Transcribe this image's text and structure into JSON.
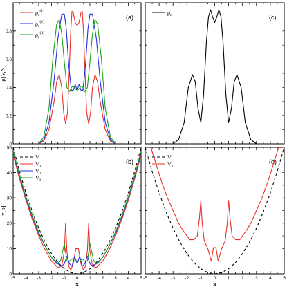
{
  "chart_data": [
    {
      "panel": "(a)",
      "type": "line",
      "ylabel": "ρ[V,N]",
      "xlim": [
        -5,
        5
      ],
      "ylim": [
        0,
        1
      ],
      "yticks": [
        "0",
        "0.2",
        "0.4",
        "0.6",
        "0.8"
      ],
      "legend_position": "top-left",
      "series": [
        {
          "name": "ρ_e^(1)",
          "label_main": "ρ",
          "label_sub": "e",
          "label_sup": "(1)",
          "color": "#e8302a",
          "x": [
            -3.0,
            -2.6,
            -2.2,
            -1.8,
            -1.6,
            -1.4,
            -1.2,
            -1.05,
            -0.9,
            -0.75,
            -0.6,
            -0.5,
            -0.4,
            -0.3,
            -0.15,
            0.0,
            0.15,
            0.3,
            0.4,
            0.5,
            0.6,
            0.75,
            0.9,
            1.05,
            1.2,
            1.4,
            1.6,
            1.8,
            2.2,
            2.6,
            3.0
          ],
          "y": [
            0.0,
            0.02,
            0.1,
            0.3,
            0.44,
            0.49,
            0.4,
            0.22,
            0.14,
            0.22,
            0.55,
            0.8,
            0.94,
            0.93,
            0.86,
            0.84,
            0.86,
            0.93,
            0.94,
            0.8,
            0.55,
            0.22,
            0.14,
            0.22,
            0.4,
            0.49,
            0.44,
            0.3,
            0.1,
            0.02,
            0.0
          ]
        },
        {
          "name": "ρ_e^(2)",
          "label_main": "ρ",
          "label_sub": "e",
          "label_sup": "(2)",
          "color": "#1f2fe0",
          "x": [
            -3.0,
            -2.6,
            -2.2,
            -1.8,
            -1.5,
            -1.2,
            -1.0,
            -0.85,
            -0.65,
            -0.45,
            -0.3,
            -0.15,
            0.0,
            0.15,
            0.3,
            0.45,
            0.65,
            0.85,
            1.0,
            1.2,
            1.5,
            1.8,
            2.2,
            2.6,
            3.0
          ],
          "y": [
            0.0,
            0.03,
            0.15,
            0.45,
            0.75,
            0.92,
            0.92,
            0.82,
            0.55,
            0.38,
            0.38,
            0.42,
            0.38,
            0.42,
            0.38,
            0.38,
            0.55,
            0.82,
            0.92,
            0.92,
            0.75,
            0.45,
            0.15,
            0.03,
            0.0
          ]
        },
        {
          "name": "ρ_e^(3)",
          "label_main": "ρ",
          "label_sub": "e",
          "label_sup": "(3)",
          "color": "#1aa01a",
          "x": [
            -3.0,
            -2.6,
            -2.2,
            -1.9,
            -1.6,
            -1.4,
            -1.2,
            -1.0,
            -0.8,
            -0.6,
            -0.45,
            -0.3,
            -0.15,
            0.0,
            0.15,
            0.3,
            0.45,
            0.6,
            0.8,
            1.0,
            1.2,
            1.4,
            1.6,
            1.9,
            2.2,
            2.6,
            3.0
          ],
          "y": [
            0.0,
            0.05,
            0.25,
            0.6,
            0.85,
            0.88,
            0.78,
            0.58,
            0.4,
            0.37,
            0.4,
            0.41,
            0.39,
            0.38,
            0.39,
            0.41,
            0.4,
            0.37,
            0.4,
            0.58,
            0.78,
            0.88,
            0.85,
            0.6,
            0.25,
            0.05,
            0.0
          ]
        }
      ]
    },
    {
      "panel": "(b)",
      "type": "line",
      "xlabel": "x",
      "ylabel": "v[ρ]",
      "xlim": [
        -5,
        5
      ],
      "ylim": [
        0,
        50
      ],
      "xticks": [
        "-5",
        "-4",
        "-3",
        "-2",
        "-1",
        "0",
        "1",
        "2",
        "3",
        "4",
        "5"
      ],
      "yticks": [
        "0",
        "10",
        "20",
        "30",
        "40",
        "50"
      ],
      "legend_position": "top-left",
      "series": [
        {
          "name": "V",
          "label_main": "V",
          "label_sub": "",
          "color": "#000000",
          "dashed": true,
          "x": [
            -5,
            -4.5,
            -4,
            -3.5,
            -3,
            -2.5,
            -2,
            -1.5,
            -1,
            -0.5,
            0,
            0.5,
            1,
            1.5,
            2,
            2.5,
            3,
            3.5,
            4,
            4.5,
            5
          ],
          "y": [
            50,
            40.5,
            32,
            24.5,
            18,
            12.5,
            8,
            4.5,
            2,
            0.5,
            0,
            0.5,
            2,
            4.5,
            8,
            12.5,
            18,
            24.5,
            32,
            40.5,
            50
          ]
        },
        {
          "name": "V_1",
          "label_main": "V",
          "label_sub": "1",
          "color": "#e8302a",
          "x": [
            -5,
            -4.5,
            -4,
            -3.5,
            -3,
            -2.5,
            -2,
            -1.5,
            -1.2,
            -1.0,
            -0.9,
            -0.8,
            -0.65,
            -0.5,
            -0.3,
            -0.1,
            0.0,
            0.1,
            0.3,
            0.5,
            0.65,
            0.8,
            0.9,
            1.0,
            1.2,
            1.5,
            2,
            2.5,
            3,
            3.5,
            4,
            4.5,
            5
          ],
          "y": [
            47,
            37.5,
            29,
            21.5,
            15,
            9.5,
            5,
            2.5,
            3,
            9,
            20,
            9,
            3,
            1.5,
            4,
            10,
            10,
            10,
            4,
            1.5,
            3,
            9,
            20,
            9,
            3,
            2.5,
            5,
            9.5,
            15,
            21.5,
            29,
            37.5,
            47
          ]
        },
        {
          "name": "V_2",
          "label_main": "V",
          "label_sub": "2",
          "color": "#1f2fe0",
          "x": [
            -5,
            -4.5,
            -4,
            -3.5,
            -3,
            -2.5,
            -2,
            -1.5,
            -1.2,
            -1.0,
            -0.8,
            -0.6,
            -0.4,
            -0.2,
            0.0,
            0.2,
            0.4,
            0.6,
            0.8,
            1.0,
            1.2,
            1.5,
            2,
            2.5,
            3,
            3.5,
            4,
            4.5,
            5
          ],
          "y": [
            48,
            38.5,
            30,
            22.5,
            16,
            11,
            6.5,
            4,
            3,
            4,
            7,
            4,
            3,
            7,
            4,
            7,
            3,
            4,
            7,
            4,
            3,
            4,
            6.5,
            11,
            16,
            22.5,
            30,
            38.5,
            48
          ]
        },
        {
          "name": "V_3",
          "label_main": "V",
          "label_sub": "3",
          "color": "#1aa01a",
          "x": [
            -5,
            -4.5,
            -4,
            -3.5,
            -3,
            -2.5,
            -2,
            -1.6,
            -1.3,
            -1.0,
            -0.8,
            -0.6,
            -0.4,
            -0.2,
            0.0,
            0.2,
            0.4,
            0.6,
            0.8,
            1.0,
            1.3,
            1.6,
            2,
            2.5,
            3,
            3.5,
            4,
            4.5,
            5
          ],
          "y": [
            48.5,
            39,
            30.5,
            23,
            16.5,
            11,
            6.5,
            4,
            5,
            12,
            5,
            5,
            6,
            5,
            5,
            5,
            6,
            5,
            5,
            12,
            5,
            4,
            6.5,
            11,
            16.5,
            23,
            30.5,
            39,
            48.5
          ]
        }
      ]
    },
    {
      "panel": "(c)",
      "type": "line",
      "xlim": [
        -5,
        5
      ],
      "ylim": [
        0,
        1
      ],
      "legend_position": "top-left",
      "series": [
        {
          "name": "ρ_e",
          "label_main": "ρ",
          "label_sub": "e",
          "label_sup": "",
          "color": "#000000",
          "x": [
            -3.0,
            -2.6,
            -2.2,
            -1.9,
            -1.6,
            -1.4,
            -1.2,
            -1.0,
            -0.8,
            -0.6,
            -0.45,
            -0.3,
            -0.15,
            0.0,
            0.15,
            0.3,
            0.45,
            0.6,
            0.8,
            1.0,
            1.2,
            1.4,
            1.6,
            1.9,
            2.2,
            2.6,
            3.0
          ],
          "y": [
            0.0,
            0.03,
            0.15,
            0.4,
            0.49,
            0.44,
            0.25,
            0.15,
            0.35,
            0.72,
            0.9,
            0.95,
            0.9,
            0.86,
            0.9,
            0.95,
            0.9,
            0.72,
            0.35,
            0.15,
            0.25,
            0.44,
            0.49,
            0.4,
            0.15,
            0.03,
            0.0
          ]
        }
      ]
    },
    {
      "panel": "(d)",
      "type": "line",
      "xlabel": "x",
      "xlim": [
        -5,
        5
      ],
      "ylim": [
        0,
        50
      ],
      "xticks": [
        "-5",
        "-4",
        "-3",
        "-2",
        "-1",
        "0",
        "1",
        "2",
        "3",
        "4",
        "5"
      ],
      "legend_position": "top-left",
      "series": [
        {
          "name": "V",
          "label_main": "V",
          "label_sub": "",
          "color": "#000000",
          "dashed": true,
          "x": [
            -5,
            -4.5,
            -4,
            -3.5,
            -3,
            -2.5,
            -2,
            -1.5,
            -1,
            -0.5,
            0,
            0.5,
            1,
            1.5,
            2,
            2.5,
            3,
            3.5,
            4,
            4.5,
            5
          ],
          "y": [
            50,
            40.5,
            32,
            24.5,
            18,
            12.5,
            8,
            4.5,
            2,
            0.5,
            0,
            0.5,
            2,
            4.5,
            8,
            12.5,
            18,
            24.5,
            32,
            40.5,
            50
          ]
        },
        {
          "name": "V_1",
          "label_main": "V",
          "label_sub": "1",
          "color": "#e8302a",
          "x": [
            -4.6,
            -4.2,
            -3.8,
            -3.4,
            -3,
            -2.6,
            -2.2,
            -1.8,
            -1.5,
            -1.25,
            -1.1,
            -1.0,
            -0.9,
            -0.75,
            -0.5,
            -0.25,
            -0.1,
            0.0,
            0.1,
            0.25,
            0.5,
            0.75,
            0.9,
            1.0,
            1.1,
            1.25,
            1.5,
            1.8,
            2.2,
            2.6,
            3,
            3.4,
            3.8,
            4.2,
            4.6
          ],
          "y": [
            50,
            43,
            36,
            30,
            25,
            20,
            16.5,
            13.5,
            13.5,
            15,
            22,
            29,
            20,
            13,
            10,
            5,
            10,
            10.5,
            10,
            5,
            10,
            13,
            20,
            29,
            22,
            15,
            13.5,
            13.5,
            16.5,
            20,
            25,
            30,
            36,
            43,
            50
          ]
        }
      ]
    }
  ]
}
